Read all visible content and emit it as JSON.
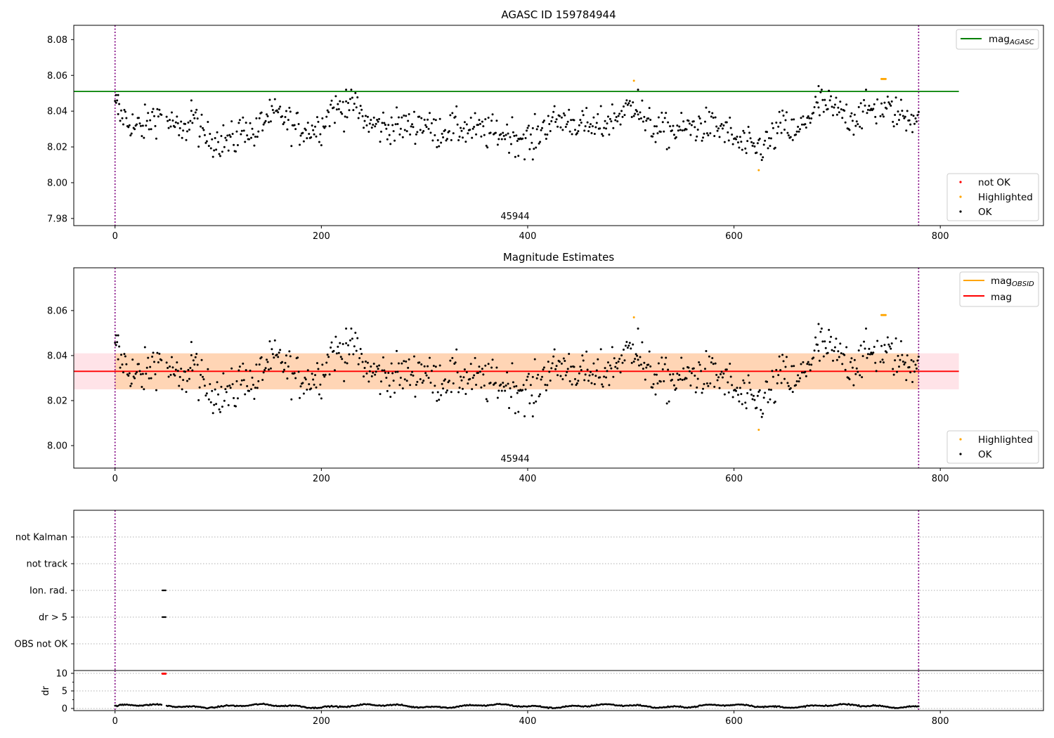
{
  "chart_data": [
    {
      "type": "scatter",
      "title": "AGASC ID 159784944",
      "annotation": "45944",
      "xlim": [
        -40,
        900
      ],
      "ylim": [
        7.976,
        8.088
      ],
      "xticks": [
        0,
        200,
        400,
        600,
        800
      ],
      "yticks": [
        7.98,
        8.0,
        8.02,
        8.04,
        8.06,
        8.08
      ],
      "ytick_labels": [
        "7.98",
        "8.00",
        "8.02",
        "8.04",
        "8.06",
        "8.08"
      ],
      "vlines": [
        0,
        779
      ],
      "hline": {
        "name": "mag_AGASC",
        "label_base": "mag",
        "label_sub": "AGASC",
        "y": 8.051,
        "x_range": [
          -40,
          818
        ],
        "color": "#008000"
      },
      "legend_lines": [
        {
          "label_base": "mag",
          "label_sub": "AGASC",
          "color": "#008000"
        }
      ],
      "legend_points": [
        {
          "label": "not OK",
          "color": "#ff0000"
        },
        {
          "label": "Highlighted",
          "color": "#ffa500"
        },
        {
          "label": "OK",
          "color": "#000000"
        }
      ],
      "series": [
        {
          "name": "OK",
          "color": "#000000",
          "points": "from magnitude series (x = 0 … 779)"
        },
        {
          "name": "Highlighted",
          "color": "#ffa500",
          "x": [
            503,
            624,
            743,
            744,
            745,
            746,
            747
          ],
          "y": [
            8.057,
            8.007,
            8.058,
            8.058,
            8.058,
            8.058,
            8.058
          ]
        }
      ]
    },
    {
      "type": "scatter",
      "title": "Magnitude Estimates",
      "annotation": "45944",
      "xlim": [
        -40,
        900
      ],
      "ylim": [
        7.99,
        8.079
      ],
      "xticks": [
        0,
        200,
        400,
        600,
        800
      ],
      "yticks": [
        8.0,
        8.02,
        8.04,
        8.06
      ],
      "ytick_labels": [
        "8.00",
        "8.02",
        "8.04",
        "8.06"
      ],
      "vlines": [
        0,
        779
      ],
      "mag_line": {
        "y": 8.033,
        "x_range": [
          -40,
          818
        ],
        "color": "#ff0000"
      },
      "mag_band": {
        "y_low": 8.025,
        "y_high": 8.041,
        "x_range": [
          -40,
          818
        ]
      },
      "obs_band": {
        "y_low": 8.025,
        "y_high": 8.041,
        "x_range": [
          0,
          779
        ]
      },
      "legend_lines": [
        {
          "label_base": "mag",
          "label_sub": "OBSID",
          "color": "#ffa500"
        },
        {
          "label_base": "mag",
          "label_sub": "",
          "color": "#ff0000"
        }
      ],
      "legend_points": [
        {
          "label": "Highlighted",
          "color": "#ffa500"
        },
        {
          "label": "OK",
          "color": "#000000"
        }
      ]
    },
    {
      "type": "scatter",
      "title": "",
      "xlim": [
        -40,
        900
      ],
      "xticks": [
        0,
        200,
        400,
        600,
        800
      ],
      "categories": [
        "not Kalman",
        "not track",
        "Ion. rad.",
        "dr > 5",
        "OBS not OK"
      ],
      "flag_points": [
        {
          "category": "Ion. rad.",
          "x_range": [
            46,
            49
          ]
        },
        {
          "category": "dr > 5",
          "x_range": [
            46,
            49
          ]
        }
      ],
      "vlines": [
        0,
        779
      ]
    },
    {
      "type": "scatter",
      "title": "",
      "ylabel": "dr",
      "xlim": [
        -40,
        900
      ],
      "ylim": [
        -0.6,
        10.8
      ],
      "xticks": [
        0,
        200,
        400,
        600,
        800
      ],
      "yticks": [
        0,
        5,
        10
      ],
      "ytick_labels": [
        "0",
        "5",
        "10"
      ],
      "outlier_points": {
        "x": [
          46,
          47,
          48,
          49
        ],
        "y": [
          9.9,
          9.9,
          9.9,
          9.9
        ],
        "color": "#ff0000"
      },
      "dr_base": 0.7,
      "vlines": [
        0,
        779
      ]
    }
  ]
}
